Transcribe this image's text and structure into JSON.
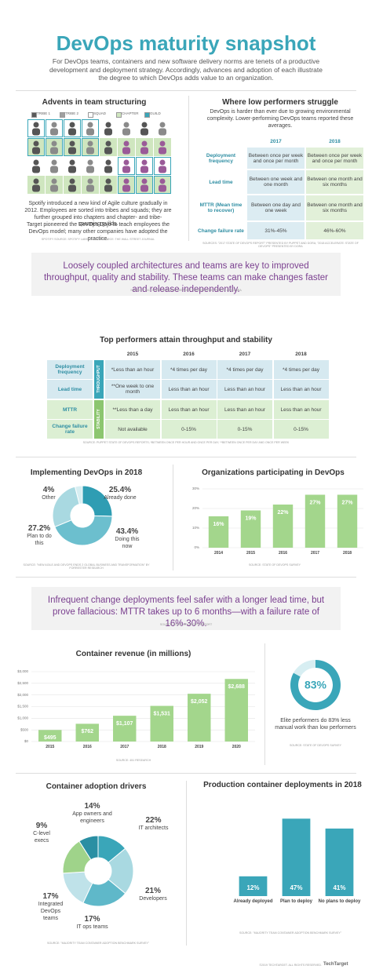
{
  "header": {
    "title": "DevOps maturity snapshot",
    "intro": "For DevOps teams, containers and new software delivery norms are tenets of a productive development and deployment strategy. Accordingly, advances and adoption of each illustrate the degree to which DevOps adds value to an organization."
  },
  "team_structuring": {
    "title": "Advents in team structuring",
    "legend": {
      "labels": [
        "TRIBE 1",
        "TRIBE 2",
        "SQUAD",
        "CHAPTER",
        "GUILD"
      ],
      "colors": [
        "#5a5a5a",
        "#a0a0a0",
        "#ffffff",
        "#cfe6bf",
        "#3aa6b9"
      ]
    },
    "text": "Spotify introduced a new kind of Agile culture gradually in 2012. Employees are sorted into tribes and squads; they are further grouped into chapters and chapter- and tribe-spanning guilds.",
    "text2": "Target pioneered the DevOps Dojo to teach employees the DevOps model; many other companies have adopted the practice.",
    "source": "SPOTIFY SOURCE: SPOTIFY LABS; TARGET SOURCE: THE WALL STREET JOURNAL"
  },
  "low_performers": {
    "title": "Where low performers struggle",
    "intro": "DevOps is harder than ever due to growing environmental complexity. Lower-performing DevOps teams reported these averages.",
    "columns": [
      "2017",
      "2018"
    ],
    "rows": [
      [
        "Deployment frequency",
        "Between once per week and once per month",
        "Between once per week and once per month"
      ],
      [
        "Lead time",
        "Between one week and one month",
        "Between one month and six months"
      ],
      [
        "MTTR (Mean time to recover)",
        "Between one day and one week",
        "Between one month and six months"
      ],
      [
        "Change failure rate",
        "31%-45%",
        "46%-60%"
      ]
    ],
    "source": "SOURCES: \"2017 STATE OF DEVOPS REPORT\" PRESENTED BY PUPPET AND DORA; \"2018 ACCELERATE: STATE OF DEVOPS\" PRESENTED BY DORA"
  },
  "banners": [
    {
      "text": "Loosely coupled architectures and teams are key to improved throughput, quality and stability. These teams can make changes faster and release independently.",
      "source": "SOURCE: \"2017 STATE OF DEVOPS REPORT\" PRESENTED BY PUPPET AND DORA"
    },
    {
      "text": "Infrequent change deployments feel safer with a longer lead time, but prove fallacious: MTTR takes up to 6 months—with a failure rate of 16%-30%.",
      "source": "SOURCE: STATE OF DEVOPS REPORT"
    }
  ],
  "top_performers": {
    "title": "Top performers attain throughput and stability",
    "columns": [
      "2015",
      "2016",
      "2017",
      "2018"
    ],
    "groups": [
      "THROUGHPUT",
      "STABILITY"
    ],
    "rows": [
      [
        "Deployment frequency",
        "*Less than an hour",
        "*4 times per day",
        "*4 times per day",
        "*4 times per day"
      ],
      [
        "Lead time",
        "**One week to one month",
        "Less than an hour",
        "Less than an hour",
        "Less than an hour"
      ],
      [
        "MTTR",
        "**Less than a day",
        "Less than an hour",
        "Less than an hour",
        "Less than an hour"
      ],
      [
        "Change failure rate",
        "Not available",
        "0-15%",
        "0-15%",
        "0-15%"
      ]
    ],
    "footnote": "SOURCE: PUPPET STATE OF DEVOPS REPORTS; *BETWEEN ONCE PER HOUR AND ONCE PER DAY; **BETWEEN ONCE PER DAY AND ONCE PER WEEK"
  },
  "chart_data": [
    {
      "type": "pie",
      "title": "Implementing DevOps in 2018",
      "categories": [
        "Already done",
        "Doing this now",
        "Plan to do this",
        "Other"
      ],
      "values": [
        25.4,
        43.4,
        27.2,
        4
      ],
      "value_labels": [
        "25.4%",
        "43.4%",
        "27.2%",
        "4%"
      ],
      "colors": [
        "#2f9db3",
        "#6cbfce",
        "#a9d9e1",
        "#d7eef2"
      ],
      "source": "SOURCE: \"NEW AGILE AND DEVOPS ENDS 2 GLOBAL BUSINESS AND TRANSFORMATION\" BY FORRESTER RESEARCH"
    },
    {
      "type": "bar",
      "title": "Organizations participating in DevOps",
      "categories": [
        "2014",
        "2015",
        "2016",
        "2017",
        "2018"
      ],
      "values": [
        16,
        19,
        22,
        27,
        27
      ],
      "value_labels": [
        "16%",
        "19%",
        "22%",
        "27%",
        "27%"
      ],
      "color": "#a3d68c",
      "ylim": [
        0,
        30
      ],
      "yticks": [
        {
          "value": 0,
          "label": "0%"
        },
        {
          "value": 10,
          "label": "10%"
        },
        {
          "value": 20,
          "label": "20%"
        },
        {
          "value": 30,
          "label": "30%"
        }
      ],
      "grid": true,
      "source": "SOURCE: STATE OF DEVOPS SURVEY"
    },
    {
      "type": "bar",
      "title": "Container revenue (in millions)",
      "categories": [
        "2015",
        "2016",
        "2017",
        "2018",
        "2019",
        "2020"
      ],
      "values": [
        495,
        762,
        1107,
        1531,
        2052,
        2688
      ],
      "value_labels": [
        "$495",
        "$762",
        "$1,107",
        "$1,531",
        "$2,052",
        "$2,688"
      ],
      "color": "#a3d68c",
      "ylim": [
        0,
        3000
      ],
      "yticks": [
        {
          "value": 0,
          "label": "$0"
        },
        {
          "value": 500,
          "label": "$500"
        },
        {
          "value": 1000,
          "label": "$1,000"
        },
        {
          "value": 1500,
          "label": "$1,500"
        },
        {
          "value": 2000,
          "label": "$2,000"
        },
        {
          "value": 2500,
          "label": "$2,500"
        },
        {
          "value": 3000,
          "label": "$3,000"
        }
      ],
      "grid": true,
      "source": "SOURCE: 451 RESEARCH"
    },
    {
      "type": "donut",
      "values": [
        83
      ],
      "value_labels": [
        "83%"
      ],
      "color": "#3aa6b9",
      "caption": "Elite performers do 83% less manual work than low performers",
      "source": "SOURCE: STATE OF DEVOPS SURVEY"
    },
    {
      "type": "pie",
      "title": "Container adoption drivers",
      "categories": [
        "App owners and engineers",
        "IT architects",
        "Developers",
        "IT ops teams",
        "Integrated DevOps teams",
        "C-level execs"
      ],
      "values": [
        14,
        22,
        21,
        17,
        17,
        9
      ],
      "value_labels": [
        "14%",
        "22%",
        "21%",
        "17%",
        "17%",
        "9%"
      ],
      "colors": [
        "#3aa6b9",
        "#a9d9e1",
        "#5fb8c9",
        "#bfe2e9",
        "#9fd38a",
        "#2a8fa3"
      ],
      "source": "SOURCE: \"MAJORITY TEAM CONTAINER ADOPTION BENCHMARK SURVEY\""
    },
    {
      "type": "bar",
      "title": "Production container deployments in 2018",
      "categories": [
        "Already deployed",
        "Plan to deploy",
        "No plans to deploy"
      ],
      "values": [
        12,
        47,
        41
      ],
      "value_labels": [
        "12%",
        "47%",
        "41%"
      ],
      "color": "#3aa6b9",
      "source": "SOURCE: \"MAJORITY TEAM CONTAINER ADOPTION BENCHMARK SURVEY\""
    }
  ],
  "footer": {
    "copyright": "©2019 TECHTARGET. ALL RIGHTS RESERVED.",
    "logo": "TechTarget"
  }
}
